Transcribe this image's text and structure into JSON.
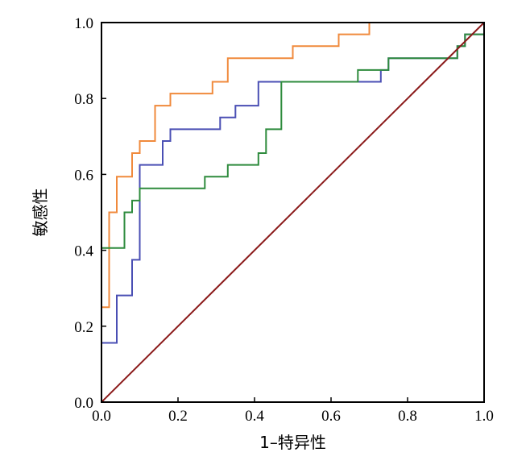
{
  "chart_data": {
    "type": "line",
    "title": "",
    "xlabel": "1–特异性",
    "ylabel": "敏感性",
    "xlim": [
      0.0,
      1.0
    ],
    "ylim": [
      0.0,
      1.0
    ],
    "x_ticks": [
      "0.0",
      "0.2",
      "0.4",
      "0.6",
      "0.8",
      "1.0"
    ],
    "y_ticks": [
      "0.0",
      "0.2",
      "0.4",
      "0.6",
      "0.8",
      "1.0"
    ],
    "grid": false,
    "legend": "none",
    "series": [
      {
        "color": "#f08a3c",
        "x": [
          0.0,
          0.0,
          0.02,
          0.02,
          0.04,
          0.04,
          0.08,
          0.08,
          0.1,
          0.1,
          0.14,
          0.14,
          0.18,
          0.18,
          0.22,
          0.22,
          0.29,
          0.29,
          0.33,
          0.33,
          0.5,
          0.5,
          0.62,
          0.62,
          0.7,
          0.7
        ],
        "y": [
          0.0,
          0.25,
          0.25,
          0.5,
          0.5,
          0.594,
          0.594,
          0.656,
          0.656,
          0.688,
          0.688,
          0.781,
          0.781,
          0.813,
          0.813,
          0.813,
          0.813,
          0.844,
          0.844,
          0.906,
          0.906,
          0.938,
          0.938,
          0.969,
          0.969,
          1.0
        ]
      },
      {
        "color": "#4a4fb4",
        "x": [
          0.0,
          0.0,
          0.04,
          0.04,
          0.08,
          0.08,
          0.1,
          0.1,
          0.16,
          0.16,
          0.18,
          0.18,
          0.31,
          0.31,
          0.35,
          0.35,
          0.41,
          0.41,
          0.73,
          0.73,
          0.75,
          0.75,
          0.93,
          0.93,
          0.95,
          0.95,
          1.0,
          1.0
        ],
        "y": [
          0.0,
          0.156,
          0.156,
          0.281,
          0.281,
          0.375,
          0.375,
          0.625,
          0.625,
          0.688,
          0.688,
          0.719,
          0.719,
          0.75,
          0.75,
          0.781,
          0.781,
          0.844,
          0.844,
          0.875,
          0.875,
          0.906,
          0.906,
          0.938,
          0.938,
          0.969,
          0.969,
          1.0
        ]
      },
      {
        "color": "#2e8b3d",
        "x": [
          0.0,
          0.0,
          0.06,
          0.06,
          0.08,
          0.08,
          0.1,
          0.1,
          0.27,
          0.27,
          0.33,
          0.33,
          0.41,
          0.41,
          0.43,
          0.43,
          0.47,
          0.47,
          0.67,
          0.67,
          0.75,
          0.75,
          0.93,
          0.93,
          0.95,
          0.95,
          1.0
        ],
        "y": [
          0.0,
          0.406,
          0.406,
          0.5,
          0.5,
          0.531,
          0.531,
          0.563,
          0.563,
          0.594,
          0.594,
          0.625,
          0.625,
          0.656,
          0.656,
          0.719,
          0.719,
          0.844,
          0.844,
          0.875,
          0.875,
          0.906,
          0.906,
          0.938,
          0.938,
          0.969,
          0.969
        ]
      },
      {
        "color": "#8b1a1a",
        "x": [
          0.0,
          1.0
        ],
        "y": [
          0.0,
          1.0
        ]
      }
    ]
  }
}
